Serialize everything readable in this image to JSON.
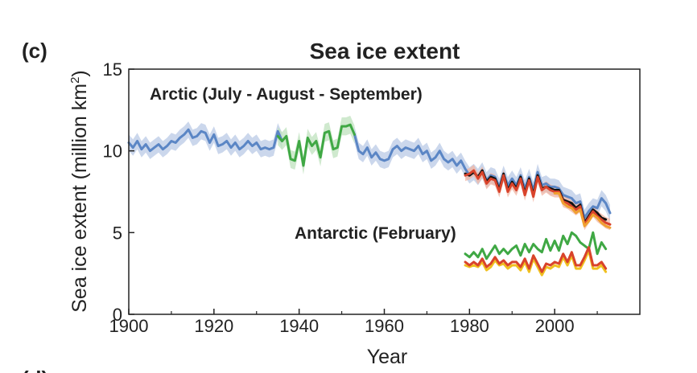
{
  "chart_data": {
    "type": "line",
    "panel_label": "(c)",
    "title": "Sea ice extent",
    "xlabel": "Year",
    "ylabel": "Sea ice extent (million km²)",
    "ylabel_main": "Sea ice extent (million km",
    "ylabel_sup": "2",
    "ylabel_close": ")",
    "xlim": [
      1900,
      2020
    ],
    "ylim": [
      0,
      15
    ],
    "xticks": [
      1900,
      1920,
      1940,
      1960,
      1980,
      2000
    ],
    "yticks": [
      0,
      5,
      10,
      15
    ],
    "grid": false,
    "legend": "none",
    "annotations": [
      {
        "text": "Arctic (July - August - September)",
        "series_group": "arctic"
      },
      {
        "text": "Antarctic (February)",
        "series_group": "antarctic"
      }
    ],
    "next_panel_label": "(d)",
    "series": [
      {
        "group": "arctic",
        "color": "#5b86c5",
        "band_color": "#b9c9e6",
        "band_halfwidth": 0.5,
        "segments": [
          {
            "x": [
              1900,
              1901,
              1902,
              1903,
              1904,
              1905,
              1906,
              1907,
              1908,
              1909,
              1910,
              1911,
              1912,
              1913,
              1914,
              1915,
              1916,
              1917,
              1918,
              1919,
              1920,
              1921,
              1922,
              1923,
              1924,
              1925,
              1926,
              1927,
              1928,
              1929,
              1930,
              1931,
              1932,
              1933,
              1934,
              1935,
              1936
            ],
            "y": [
              10.5,
              10.2,
              10.6,
              10.1,
              10.4,
              10.0,
              10.2,
              10.4,
              10.1,
              10.3,
              10.6,
              10.5,
              10.8,
              11.0,
              11.3,
              10.8,
              10.9,
              11.2,
              11.1,
              10.5,
              11.0,
              10.3,
              10.4,
              10.6,
              10.2,
              10.5,
              10.1,
              10.3,
              10.6,
              10.3,
              10.5,
              10.1,
              10.2,
              10.1,
              10.2,
              11.2,
              10.6
            ]
          },
          {
            "x": [
              1953,
              1954,
              1955,
              1956,
              1957,
              1958,
              1959,
              1960,
              1961,
              1962,
              1963,
              1964,
              1965,
              1966,
              1967,
              1968,
              1969,
              1970,
              1971,
              1972,
              1973,
              1974,
              1975,
              1976,
              1977,
              1978,
              1979,
              1980,
              1981,
              1982,
              1983,
              1984,
              1985,
              1986,
              1987,
              1988,
              1989,
              1990,
              1991,
              1992,
              1993,
              1994,
              1995,
              1996,
              1997,
              1998,
              1999,
              2000,
              2001,
              2002,
              2003,
              2004,
              2005,
              2006,
              2007,
              2008,
              2009,
              2010,
              2011,
              2012,
              2013
            ],
            "y": [
              11.0,
              10.0,
              9.8,
              10.2,
              9.6,
              9.9,
              9.5,
              9.4,
              9.5,
              10.1,
              10.3,
              10.0,
              10.2,
              10.1,
              10.0,
              10.3,
              9.8,
              10.0,
              9.4,
              9.6,
              10.0,
              9.5,
              9.3,
              9.5,
              9.1,
              9.4,
              8.9,
              8.5,
              8.7,
              8.4,
              8.8,
              8.2,
              8.5,
              8.4,
              7.8,
              8.6,
              7.9,
              8.3,
              7.9,
              8.5,
              7.7,
              8.4,
              7.6,
              8.7,
              7.9,
              8.0,
              7.8,
              7.8,
              7.7,
              7.3,
              7.2,
              7.1,
              6.8,
              6.9,
              5.9,
              6.3,
              6.6,
              6.5,
              7.1,
              6.8,
              6.2
            ]
          }
        ]
      },
      {
        "group": "arctic",
        "color": "#3fa844",
        "band_color": "#bfe2bd",
        "band_halfwidth": 0.55,
        "segments": [
          {
            "x": [
              1935,
              1936,
              1937,
              1938,
              1939,
              1940,
              1941,
              1942,
              1943,
              1944,
              1945,
              1946,
              1947,
              1948,
              1949,
              1950,
              1951,
              1952,
              1953
            ],
            "y": [
              10.9,
              10.6,
              10.9,
              9.5,
              9.4,
              10.6,
              9.1,
              10.8,
              10.3,
              10.6,
              9.6,
              11.1,
              11.2,
              10.1,
              10.2,
              11.5,
              11.5,
              11.6,
              11.0
            ]
          }
        ]
      },
      {
        "group": "arctic",
        "color": "#111111",
        "band_color": null,
        "segments": [
          {
            "x": [
              1979,
              1980,
              1981,
              1982,
              1983,
              1984,
              1985,
              1986,
              1987,
              1988,
              1989,
              1990,
              1991,
              1992,
              1993,
              1994,
              1995,
              1996,
              1997,
              1998,
              1999,
              2000,
              2001,
              2002,
              2003,
              2004,
              2005,
              2006,
              2007,
              2008,
              2009,
              2010,
              2011,
              2012
            ],
            "y": [
              8.6,
              8.5,
              8.7,
              8.4,
              8.8,
              8.1,
              8.4,
              8.3,
              7.6,
              8.6,
              7.6,
              8.1,
              7.7,
              8.4,
              7.4,
              8.3,
              7.3,
              8.5,
              7.7,
              7.8,
              7.7,
              7.6,
              7.6,
              7.0,
              6.9,
              6.8,
              6.5,
              6.7,
              5.6,
              6.0,
              6.4,
              6.2,
              5.9,
              5.8
            ]
          }
        ]
      },
      {
        "group": "arctic",
        "color": "#d9432b",
        "band_color": "#f2b5a3",
        "band_halfwidth": 0.35,
        "segments": [
          {
            "x": [
              1979,
              1980,
              1981,
              1982,
              1983,
              1984,
              1985,
              1986,
              1987,
              1988,
              1989,
              1990,
              1991,
              1992,
              1993,
              1994,
              1995,
              1996,
              1997,
              1998,
              1999,
              2000,
              2001,
              2002,
              2003,
              2004,
              2005,
              2006,
              2007,
              2008,
              2009,
              2010,
              2011,
              2012,
              2013
            ],
            "y": [
              8.5,
              8.6,
              8.8,
              8.3,
              8.7,
              8.0,
              8.3,
              8.2,
              7.5,
              8.5,
              7.5,
              8.0,
              7.6,
              8.3,
              7.3,
              8.2,
              7.2,
              8.4,
              7.6,
              7.8,
              7.6,
              7.5,
              7.5,
              6.9,
              6.8,
              6.6,
              6.4,
              6.6,
              5.5,
              5.9,
              6.3,
              6.0,
              5.8,
              5.6,
              5.5
            ]
          }
        ]
      },
      {
        "group": "arctic",
        "color": "#f0a030",
        "band_color": null,
        "segments": [
          {
            "x": [
              2000,
              2001,
              2002,
              2003,
              2004,
              2005,
              2006,
              2007,
              2008,
              2009,
              2010,
              2011,
              2012,
              2013
            ],
            "y": [
              7.4,
              7.4,
              6.8,
              6.6,
              6.5,
              6.2,
              6.4,
              5.4,
              5.7,
              6.1,
              5.9,
              5.6,
              5.4,
              5.3
            ]
          }
        ]
      },
      {
        "group": "antarctic",
        "color": "#3fa844",
        "band_color": null,
        "segments": [
          {
            "x": [
              1979,
              1980,
              1981,
              1982,
              1983,
              1984,
              1985,
              1986,
              1987,
              1988,
              1989,
              1990,
              1991,
              1992,
              1993,
              1994,
              1995,
              1996,
              1997,
              1998,
              1999,
              2000,
              2001,
              2002,
              2003,
              2004,
              2005,
              2006,
              2007,
              2008,
              2009,
              2010,
              2011,
              2012
            ],
            "y": [
              3.7,
              3.5,
              3.8,
              3.5,
              4.0,
              3.4,
              3.8,
              4.2,
              3.7,
              4.0,
              3.7,
              4.0,
              4.2,
              3.6,
              4.3,
              3.8,
              4.3,
              4.0,
              3.8,
              4.6,
              3.9,
              4.5,
              3.9,
              4.8,
              4.3,
              5.0,
              4.8,
              4.4,
              4.2,
              4.0,
              5.0,
              3.7,
              4.4,
              4.0
            ]
          }
        ]
      },
      {
        "group": "antarctic",
        "color": "#f0c020",
        "band_color": null,
        "segments": [
          {
            "x": [
              1979,
              1980,
              1981,
              1982,
              1983,
              1984,
              1985,
              1986,
              1987,
              1988,
              1989,
              1990,
              1991,
              1992,
              1993,
              1994,
              1995,
              1996,
              1997,
              1998,
              1999,
              2000,
              2001,
              2002,
              2003,
              2004,
              2005,
              2006,
              2007,
              2008,
              2009,
              2010,
              2011,
              2012
            ],
            "y": [
              3.0,
              2.9,
              3.0,
              2.9,
              3.2,
              2.7,
              2.9,
              3.3,
              3.0,
              3.1,
              2.8,
              3.0,
              3.0,
              2.7,
              3.2,
              2.6,
              3.4,
              2.9,
              2.4,
              2.9,
              2.8,
              3.0,
              2.9,
              3.5,
              3.0,
              3.6,
              2.8,
              2.8,
              3.3,
              3.9,
              2.8,
              2.8,
              3.0,
              2.6
            ]
          }
        ]
      },
      {
        "group": "antarctic",
        "color": "#d9432b",
        "band_color": null,
        "segments": [
          {
            "x": [
              1979,
              1980,
              1981,
              1982,
              1983,
              1984,
              1985,
              1986,
              1987,
              1988,
              1989,
              1990,
              1991,
              1992,
              1993,
              1994,
              1995,
              1996,
              1997,
              1998,
              1999,
              2000,
              2001,
              2002,
              2003,
              2004,
              2005,
              2006,
              2007,
              2008,
              2009,
              2010,
              2011,
              2012
            ],
            "y": [
              3.2,
              3.0,
              3.2,
              3.0,
              3.4,
              2.9,
              3.1,
              3.5,
              3.1,
              3.3,
              3.0,
              3.2,
              3.2,
              2.9,
              3.4,
              2.8,
              3.6,
              3.1,
              2.6,
              3.1,
              3.0,
              3.2,
              3.1,
              3.7,
              3.2,
              3.8,
              3.0,
              3.0,
              3.5,
              4.1,
              3.0,
              3.0,
              3.2,
              2.8
            ]
          }
        ]
      }
    ]
  }
}
